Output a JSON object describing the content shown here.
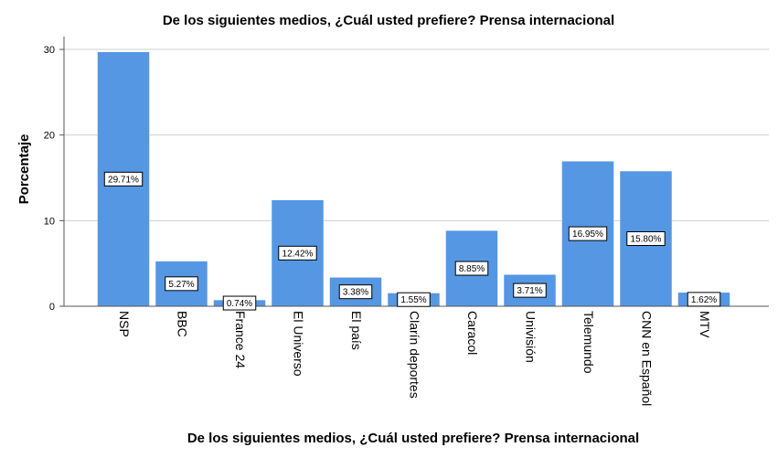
{
  "chart_data": {
    "type": "bar",
    "title": "De los siguientes medios, ¿Cuál usted prefiere? Prensa internacional",
    "xlabel": "De los siguientes medios, ¿Cuál usted prefiere? Prensa internacional",
    "ylabel": "Porcentaje",
    "categories": [
      "NSP",
      "BBC",
      "France 24",
      "El Universo",
      "El país",
      "Clarín deportes",
      "Caracol",
      "Univisión",
      "Telemundo",
      "CNN en Español",
      "MTV"
    ],
    "values": [
      29.71,
      5.27,
      0.74,
      12.42,
      3.38,
      1.55,
      8.85,
      3.71,
      16.95,
      15.8,
      1.62
    ],
    "data_labels": [
      "29.71%",
      "5.27%",
      "0.74%",
      "12.42%",
      "3.38%",
      "1.55%",
      "8.85%",
      "3.71%",
      "16.95%",
      "15.80%",
      "1.62%"
    ],
    "yticks": [
      0,
      10,
      20,
      30
    ],
    "ylim": [
      0,
      31.5
    ],
    "grid": true,
    "bar_color": "#5597e3"
  }
}
